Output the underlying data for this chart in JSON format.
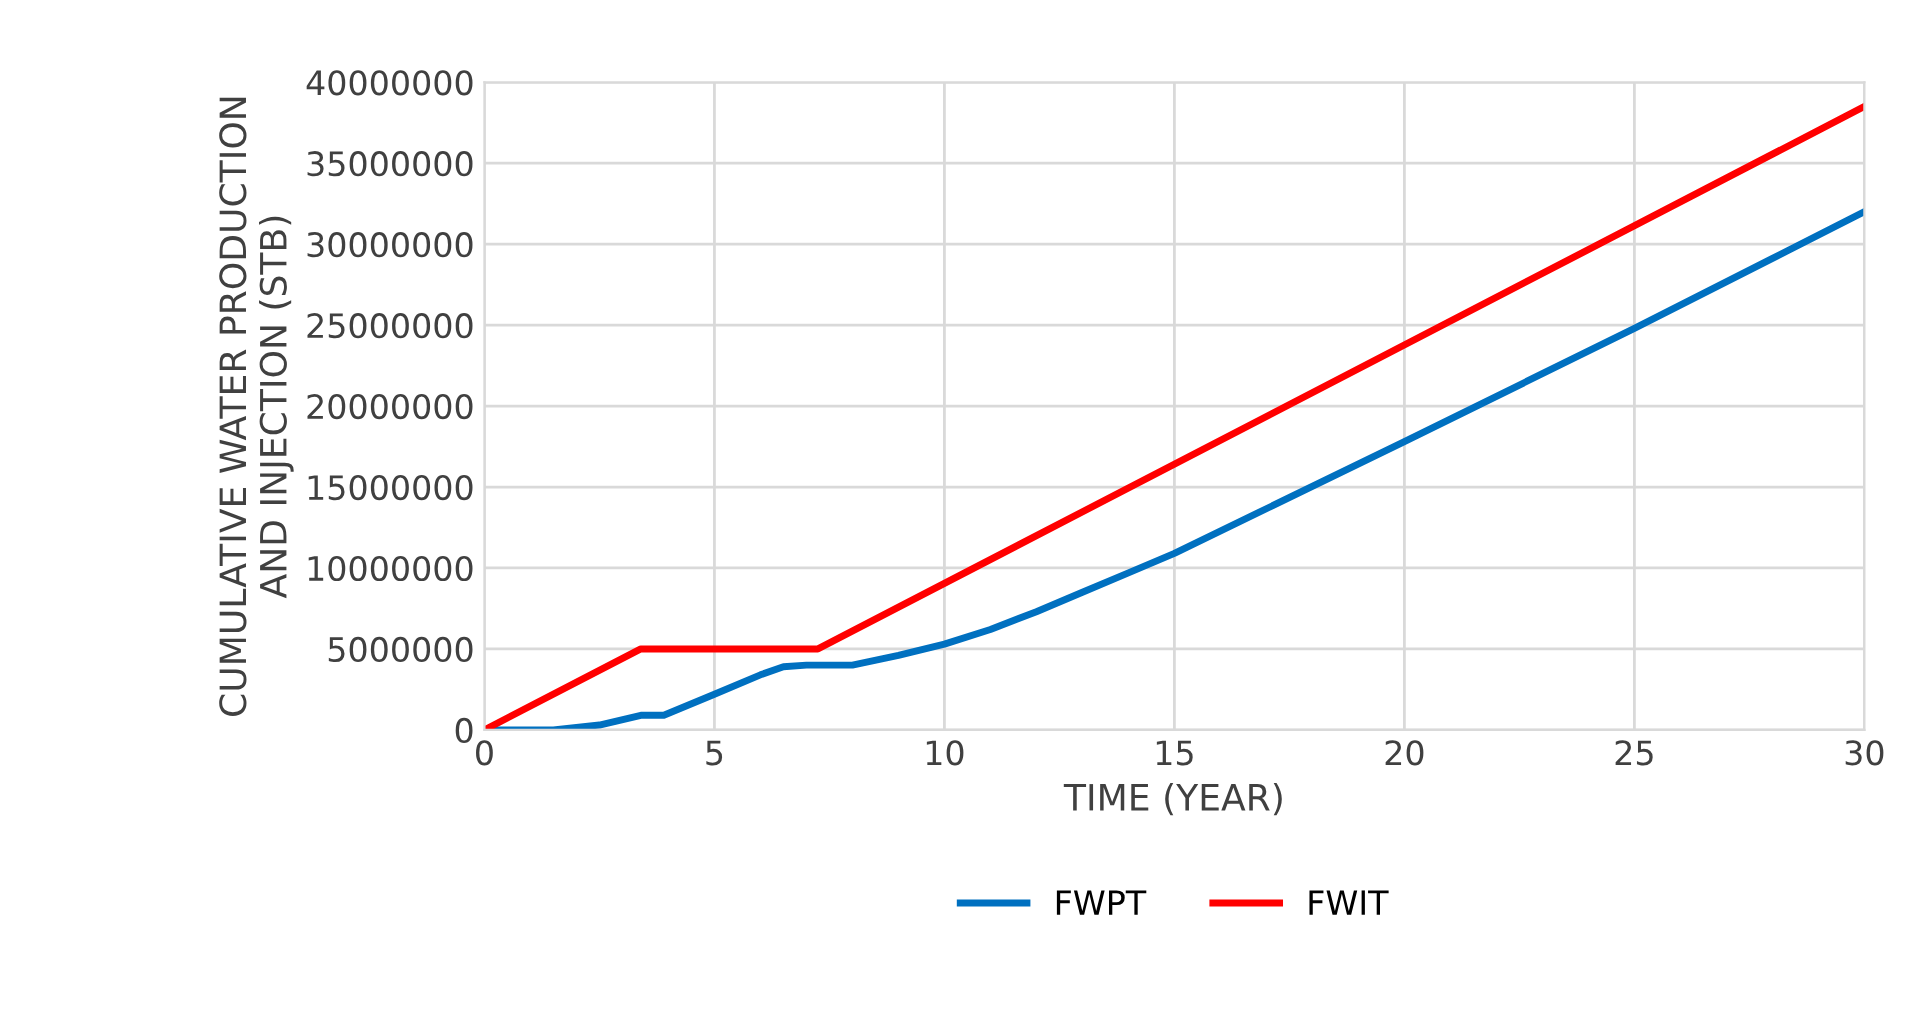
{
  "chart_data": {
    "type": "line",
    "xlabel": "TIME (YEAR)",
    "ylabel": "CUMULATIVE WATER PRODUCTION\nAND INJECTION (STB)",
    "xlim": [
      0,
      30
    ],
    "xticks": [
      0,
      5,
      10,
      15,
      20,
      25,
      30
    ],
    "ylim": [
      0,
      40000000
    ],
    "yticks": [
      0,
      5000000,
      10000000,
      15000000,
      20000000,
      25000000,
      30000000,
      35000000,
      40000000
    ],
    "grid": true,
    "legend": "bottom",
    "marker": "none",
    "line_style": "solid",
    "series": [
      {
        "name": "FWPT",
        "color": "#0070c0",
        "x": [
          0,
          1.5,
          2.5,
          3.4,
          3.9,
          5,
          6,
          6.5,
          7,
          8,
          9,
          10,
          11,
          12,
          13,
          14,
          15,
          20,
          25,
          30
        ],
        "values": [
          0,
          0,
          300000,
          900000,
          900000,
          2200000,
          3400000,
          3900000,
          4000000,
          4000000,
          4600000,
          5300000,
          6200000,
          7300000,
          8500000,
          9700000,
          10900000,
          17800000,
          24800000,
          32000000
        ]
      },
      {
        "name": "FWIT",
        "color": "#ff0000",
        "x": [
          0,
          3.4,
          7.25,
          30
        ],
        "values": [
          0,
          5000000,
          5000000,
          38500000
        ]
      }
    ]
  }
}
